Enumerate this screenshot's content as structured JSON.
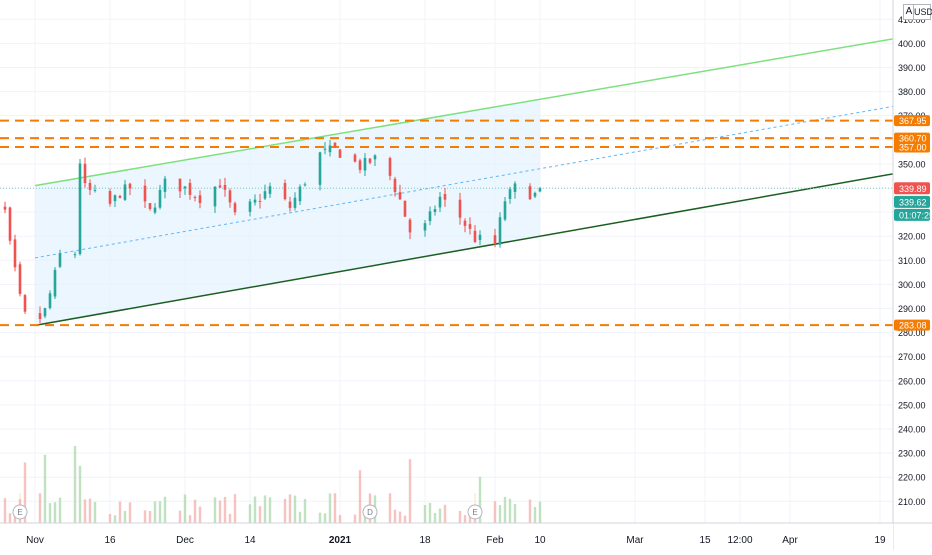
{
  "toolbar": {
    "auto_label": "A",
    "currency_label": "USD"
  },
  "colors": {
    "up": "#26a69a",
    "down": "#ef5350",
    "channel_upper": "#7ee07e",
    "channel_lower": "#1b5e20",
    "channel_mid": "#64b5f6",
    "channel_fill": "#e3f2fd",
    "level_line": "#f57c00",
    "current_price_bg": "#ef5350",
    "prev_price_bg": "#26a69a",
    "timer_bg": "#26a69a",
    "level_tag_bg": "#f57c00"
  },
  "price_labels": {
    "current": "339.89",
    "previous": "339.62",
    "timer": "01:07:25"
  },
  "level_tags": [
    "367.95",
    "360.70",
    "357.00",
    "283.08"
  ],
  "event_markers": [
    {
      "letter": "E",
      "date": "2020-10-29"
    },
    {
      "letter": "D",
      "date": "2021-01-07"
    },
    {
      "letter": "E",
      "date": "2021-01-28"
    }
  ],
  "chart_data": {
    "type": "candlestick",
    "title": "",
    "x_axis": {
      "type": "date",
      "range": [
        "2020-10-25",
        "2021-04-21"
      ],
      "tick_labels": [
        "Nov",
        "16",
        "Dec",
        "14",
        "2021",
        "18",
        "Feb",
        "10",
        "Mar",
        "15",
        "12:00",
        "Apr",
        "19"
      ],
      "tick_dates": [
        "2020-11-01",
        "2020-11-16",
        "2020-12-01",
        "2020-12-14",
        "2021-01-01",
        "2021-01-18",
        "2021-02-01",
        "2021-02-10",
        "2021-03-01",
        "2021-03-15",
        "2021-03-22",
        "2021-04-01",
        "2021-04-19"
      ]
    },
    "y_axis": {
      "range": [
        201,
        418
      ],
      "tick_values": [
        210,
        220,
        230,
        240,
        250,
        260,
        270,
        280,
        290,
        300,
        310,
        320,
        330,
        340,
        350,
        360,
        370,
        380,
        390,
        400,
        410
      ],
      "tick_labels": [
        "210.00",
        "220.00",
        "230.00",
        "240.00",
        "250.00",
        "260.00",
        "270.00",
        "280.00",
        "290.00",
        "300.00",
        "310.00",
        "320.00",
        "330.00",
        "340.00",
        "350.00",
        "360.00",
        "370.00",
        "380.00",
        "390.00",
        "400.00",
        "410.00"
      ],
      "position": "right"
    },
    "grid": true,
    "close_keyframes": [
      [
        "2020-10-20",
        334
      ],
      [
        "2020-10-23",
        332
      ],
      [
        "2020-10-26",
        330
      ],
      [
        "2020-10-27",
        316
      ],
      [
        "2020-10-28",
        305
      ],
      [
        "2020-10-29",
        294
      ],
      [
        "2020-10-30",
        287
      ],
      [
        "2020-11-02",
        286
      ],
      [
        "2020-11-03",
        289
      ],
      [
        "2020-11-04",
        296
      ],
      [
        "2020-11-05",
        304
      ],
      [
        "2020-11-06",
        312
      ],
      [
        "2020-11-09",
        313
      ],
      [
        "2020-11-10",
        351
      ],
      [
        "2020-11-11",
        340
      ],
      [
        "2020-11-13",
        337
      ],
      [
        "2020-11-16",
        333
      ],
      [
        "2020-11-18",
        338
      ],
      [
        "2020-11-20",
        340
      ],
      [
        "2020-11-24",
        330
      ],
      [
        "2020-11-27",
        342
      ],
      [
        "2020-12-01",
        340
      ],
      [
        "2020-12-04",
        336
      ],
      [
        "2020-12-08",
        342
      ],
      [
        "2020-12-11",
        328
      ],
      [
        "2020-12-15",
        334
      ],
      [
        "2020-12-18",
        340
      ],
      [
        "2020-12-22",
        332
      ],
      [
        "2020-12-28",
        354
      ],
      [
        "2020-12-31",
        356
      ],
      [
        "2021-01-05",
        349
      ],
      [
        "2021-01-08",
        352
      ],
      [
        "2021-01-11",
        345
      ],
      [
        "2021-01-13",
        335
      ],
      [
        "2021-01-15",
        322
      ],
      [
        "2021-01-18",
        324
      ],
      [
        "2021-01-21",
        336
      ],
      [
        "2021-01-25",
        328
      ],
      [
        "2021-01-28",
        319
      ],
      [
        "2021-02-01",
        317
      ],
      [
        "2021-02-03",
        335
      ],
      [
        "2021-02-05",
        340
      ],
      [
        "2021-02-09",
        337
      ],
      [
        "2021-02-10",
        339.89
      ]
    ],
    "volume": {
      "scale_max": 100,
      "peaks": [
        {
          "date": "2020-10-30",
          "value": 55
        },
        {
          "date": "2020-11-03",
          "value": 62
        },
        {
          "date": "2020-11-09",
          "value": 70
        },
        {
          "date": "2020-11-10",
          "value": 52
        },
        {
          "date": "2021-01-15",
          "value": 58
        },
        {
          "date": "2021-01-05",
          "value": 48
        },
        {
          "date": "2021-01-29",
          "value": 42
        }
      ]
    },
    "horizontal_levels": [
      367.95,
      360.7,
      357.0,
      283.08
    ],
    "channel": {
      "lower": [
        [
          "2020-11-01",
          283
        ],
        [
          "2021-04-22",
          346
        ]
      ],
      "upper": [
        [
          "2020-11-01",
          341
        ],
        [
          "2021-04-22",
          402
        ]
      ],
      "mid": [
        [
          "2020-11-01",
          311
        ],
        [
          "2021-04-22",
          374
        ]
      ]
    },
    "last_price": 339.89,
    "prev_close": 339.62
  }
}
